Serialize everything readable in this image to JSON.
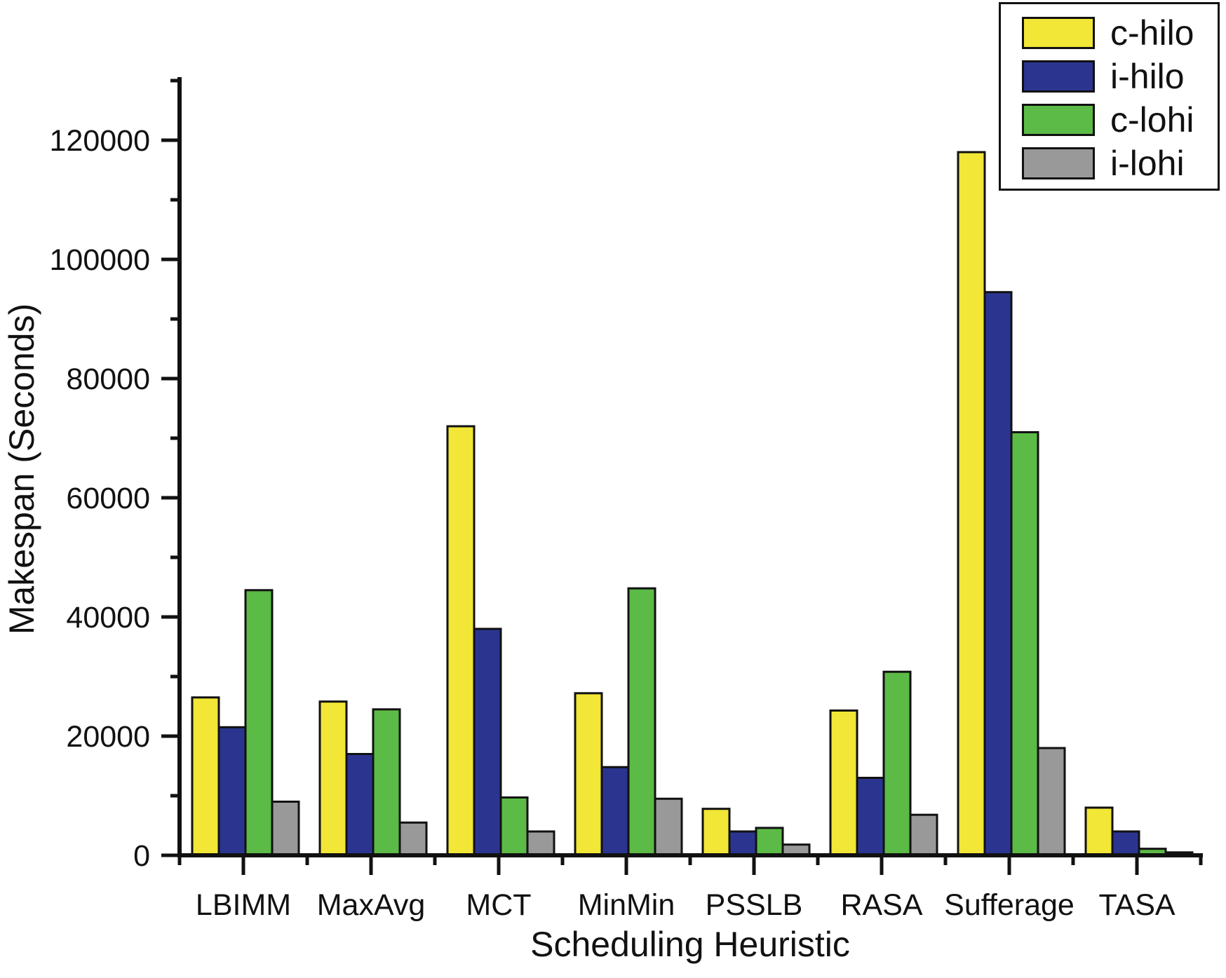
{
  "figure": {
    "background": "#ffffff"
  },
  "chart_data": {
    "type": "bar",
    "title": "",
    "xlabel": "Scheduling Heuristic",
    "ylabel": "Makespan (Seconds)",
    "categories": [
      "LBIMM",
      "MaxAvg",
      "MCT",
      "MinMin",
      "PSSLB",
      "RASA",
      "Sufferage",
      "TASA"
    ],
    "series": [
      {
        "name": "c-hilo",
        "color": "#F2E636",
        "values": [
          26500,
          25800,
          72000,
          27200,
          7800,
          24300,
          118000,
          8000
        ]
      },
      {
        "name": "i-hilo",
        "color": "#2B3590",
        "values": [
          21500,
          17000,
          38000,
          14800,
          4000,
          13000,
          94500,
          4000
        ]
      },
      {
        "name": "c-lohi",
        "color": "#5CBA46",
        "values": [
          44500,
          24500,
          9700,
          44800,
          4600,
          30800,
          71000,
          1100
        ]
      },
      {
        "name": "i-lohi",
        "color": "#999999",
        "values": [
          9000,
          5500,
          4000,
          9500,
          1800,
          6800,
          18000,
          500
        ]
      }
    ],
    "ylim": [
      0,
      130000
    ],
    "ytick_major_step": 20000,
    "ytick_minor_step": 10000,
    "ytick_labels": [
      "0",
      "20000",
      "40000",
      "60000",
      "80000",
      "100000",
      "120000"
    ],
    "grid": false,
    "legend_position": "top-right",
    "bar_edge_color": "#111111",
    "axis_color": "#111111"
  }
}
